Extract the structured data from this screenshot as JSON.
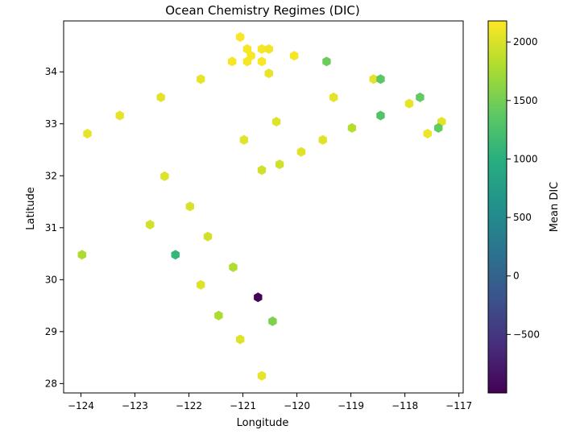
{
  "chart_data": {
    "type": "hexbin",
    "title": "Ocean Chemistry Regimes (DIC)",
    "xlabel": "Longitude",
    "ylabel": "Latitude",
    "xlim": [
      -124.32,
      -116.92
    ],
    "ylim": [
      27.82,
      34.98
    ],
    "xticks": [
      -124,
      -123,
      -122,
      -121,
      -120,
      -119,
      -118,
      -117
    ],
    "xtick_labels": [
      "−124",
      "−123",
      "−122",
      "−121",
      "−120",
      "−119",
      "−118",
      "−117"
    ],
    "yticks": [
      28,
      29,
      30,
      31,
      32,
      33,
      34
    ],
    "ytick_labels": [
      "28",
      "29",
      "30",
      "31",
      "32",
      "33",
      "34"
    ],
    "colorbar": {
      "label": "Mean DIC",
      "colormap": "viridis",
      "range": [
        -1000,
        2180
      ],
      "ticks": [
        -500,
        0,
        500,
        1000,
        1500,
        2000
      ],
      "tick_labels": [
        "−500",
        "0",
        "500",
        "1000",
        "1500",
        "2000"
      ]
    },
    "points": [
      {
        "x": -121.05,
        "y": 34.67,
        "v": 2160
      },
      {
        "x": -120.92,
        "y": 34.44,
        "v": 2150
      },
      {
        "x": -120.65,
        "y": 34.44,
        "v": 2150
      },
      {
        "x": -120.52,
        "y": 34.44,
        "v": 2120
      },
      {
        "x": -120.85,
        "y": 34.31,
        "v": 2150
      },
      {
        "x": -120.05,
        "y": 34.31,
        "v": 2140
      },
      {
        "x": -121.2,
        "y": 34.2,
        "v": 2150
      },
      {
        "x": -120.92,
        "y": 34.2,
        "v": 2150
      },
      {
        "x": -120.65,
        "y": 34.2,
        "v": 2160
      },
      {
        "x": -119.45,
        "y": 34.2,
        "v": 1450
      },
      {
        "x": -120.52,
        "y": 33.97,
        "v": 2080
      },
      {
        "x": -121.78,
        "y": 33.86,
        "v": 2080
      },
      {
        "x": -118.58,
        "y": 33.86,
        "v": 2050
      },
      {
        "x": -118.45,
        "y": 33.86,
        "v": 1350
      },
      {
        "x": -122.52,
        "y": 33.51,
        "v": 2050
      },
      {
        "x": -119.32,
        "y": 33.51,
        "v": 2050
      },
      {
        "x": -117.72,
        "y": 33.51,
        "v": 1400
      },
      {
        "x": -117.92,
        "y": 33.39,
        "v": 2070
      },
      {
        "x": -123.28,
        "y": 33.16,
        "v": 2060
      },
      {
        "x": -118.45,
        "y": 33.16,
        "v": 1300
      },
      {
        "x": -120.38,
        "y": 33.04,
        "v": 2030
      },
      {
        "x": -117.32,
        "y": 33.04,
        "v": 2050
      },
      {
        "x": -118.98,
        "y": 32.92,
        "v": 1820
      },
      {
        "x": -117.38,
        "y": 32.92,
        "v": 1400
      },
      {
        "x": -123.88,
        "y": 32.81,
        "v": 2060
      },
      {
        "x": -117.58,
        "y": 32.81,
        "v": 2100
      },
      {
        "x": -120.98,
        "y": 32.69,
        "v": 2030
      },
      {
        "x": -119.52,
        "y": 32.69,
        "v": 2040
      },
      {
        "x": -119.92,
        "y": 32.46,
        "v": 2040
      },
      {
        "x": -120.32,
        "y": 32.22,
        "v": 1950
      },
      {
        "x": -120.65,
        "y": 32.11,
        "v": 1950
      },
      {
        "x": -122.45,
        "y": 31.99,
        "v": 2020
      },
      {
        "x": -121.98,
        "y": 31.41,
        "v": 2000
      },
      {
        "x": -122.72,
        "y": 31.06,
        "v": 1960
      },
      {
        "x": -121.65,
        "y": 30.83,
        "v": 1960
      },
      {
        "x": -123.98,
        "y": 30.48,
        "v": 1780
      },
      {
        "x": -122.25,
        "y": 30.48,
        "v": 1100
      },
      {
        "x": -121.18,
        "y": 30.24,
        "v": 1800
      },
      {
        "x": -121.78,
        "y": 29.9,
        "v": 2020
      },
      {
        "x": -120.72,
        "y": 29.66,
        "v": -980
      },
      {
        "x": -121.45,
        "y": 29.31,
        "v": 1780
      },
      {
        "x": -120.45,
        "y": 29.2,
        "v": 1550
      },
      {
        "x": -121.05,
        "y": 28.85,
        "v": 2020
      },
      {
        "x": -120.65,
        "y": 28.15,
        "v": 2060
      }
    ]
  }
}
